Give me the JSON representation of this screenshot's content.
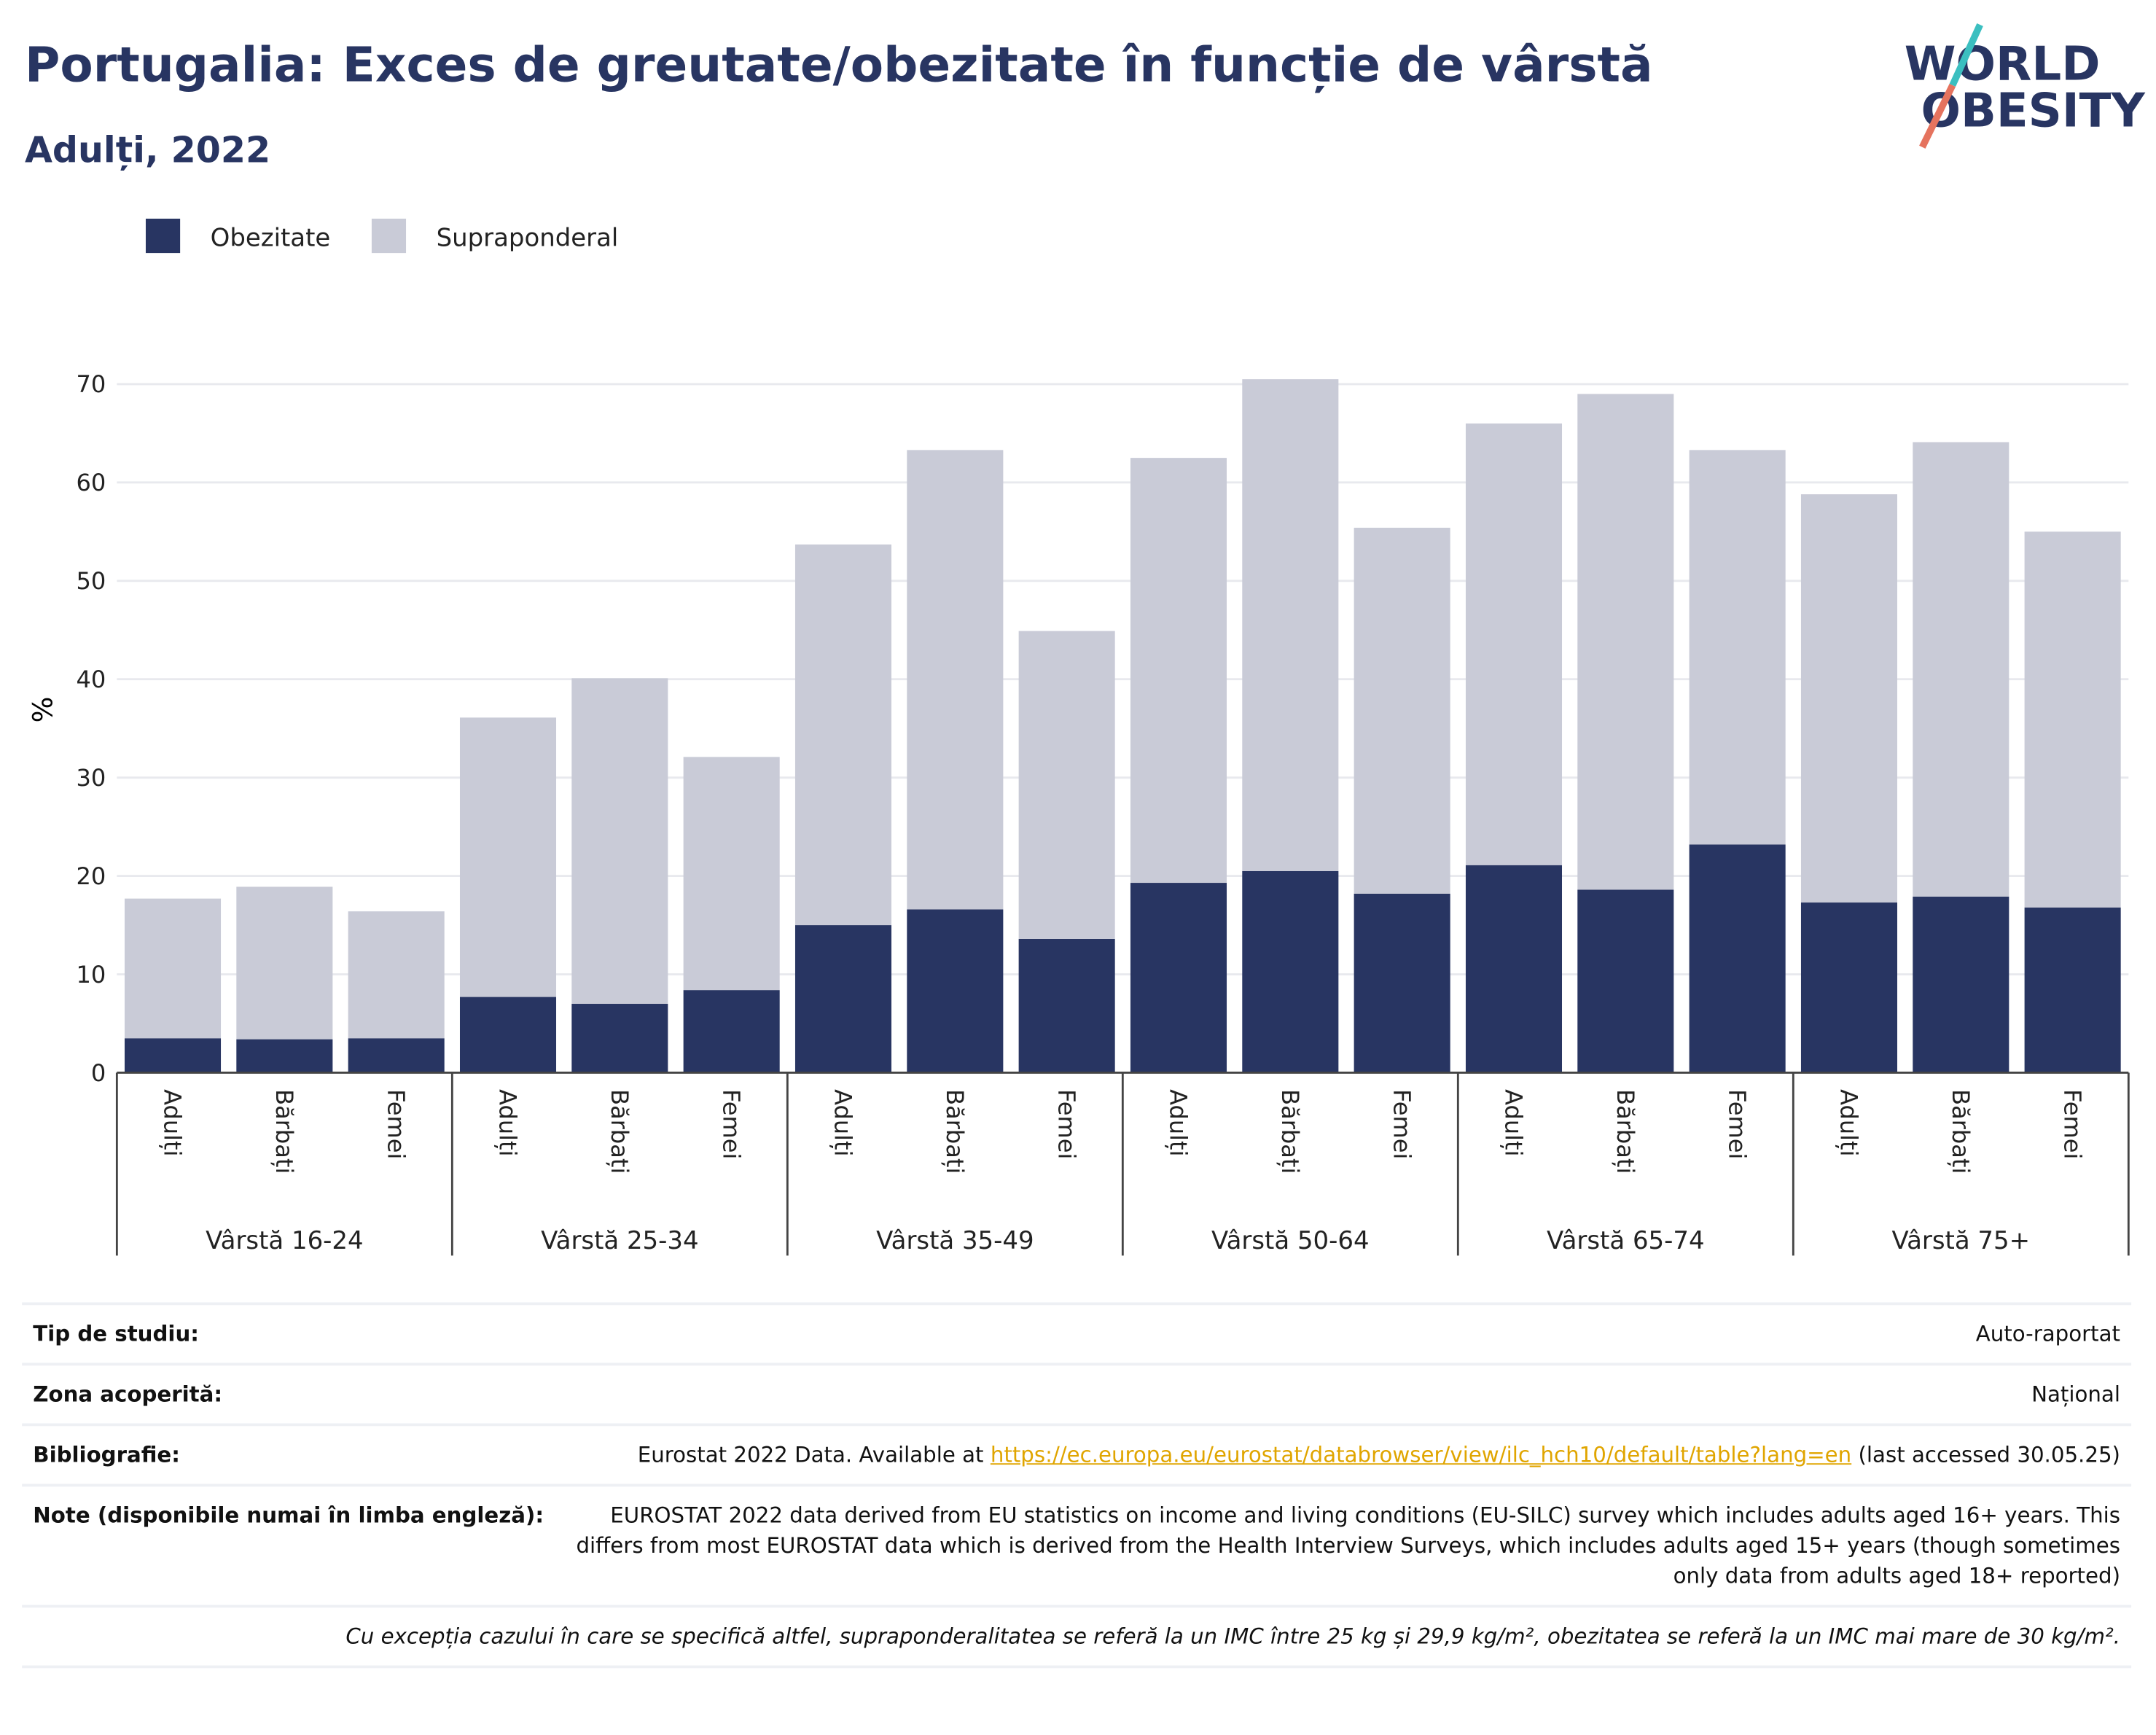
{
  "chart_data": {
    "type": "stacked_bar",
    "title": "Portugalia: Exces de greutate/obezitate în funcție de vârstă",
    "subtitle": "Adulți, 2022",
    "logo": [
      "WORLD",
      "OBESITY"
    ],
    "y_label": "%",
    "categories": [
      "Adulți",
      "Bărbați",
      "Femei",
      "Adulți",
      "Bărbați",
      "Femei",
      "Adulți",
      "Bărbați",
      "Femei",
      "Adulți",
      "Bărbați",
      "Femei",
      "Adulți",
      "Bărbați",
      "Femei",
      "Adulți",
      "Bărbați",
      "Femei"
    ],
    "groups": [
      "Vârstă 16-24",
      "Vârstă 25-34",
      "Vârstă 35-49",
      "Vârstă 50-64",
      "Vârstă 65-74",
      "Vârstă 75+"
    ],
    "series": [
      {
        "name": "Obezitate",
        "color": "#283562",
        "values": [
          3.5,
          3.4,
          3.5,
          7.7,
          7.0,
          8.4,
          15.0,
          16.6,
          13.6,
          19.3,
          20.5,
          18.2,
          21.1,
          18.6,
          23.2,
          17.3,
          17.9,
          16.8
        ]
      },
      {
        "name": "Supraponderal",
        "color": "#c9cbd7",
        "values": [
          14.2,
          15.5,
          12.9,
          28.4,
          33.1,
          23.7,
          38.7,
          46.7,
          31.3,
          43.2,
          50.0,
          37.2,
          44.9,
          50.4,
          40.1,
          41.5,
          46.2,
          38.2
        ]
      }
    ],
    "ylim": [
      0,
      72
    ],
    "yticks": [
      0,
      10,
      20,
      30,
      40,
      50,
      60,
      70
    ],
    "grid": true
  },
  "footer": {
    "rows": [
      {
        "label": "Tip de studiu:",
        "value": "Auto-raportat"
      },
      {
        "label": "Zona acoperită:",
        "value": "Național"
      }
    ],
    "bibliography": {
      "label": "Bibliografie:",
      "text": "Eurostat 2022 Data. Available at",
      "link": "https://ec.europa.eu/eurostat/databrowser/view/ilc_hch10/default/table?lang=en",
      "suffix": "(last accessed 30.05.25)"
    },
    "notes": {
      "label": "Note (disponibile numai în limba engleză):",
      "value": "EUROSTAT 2022 data derived from EU statistics on income and living conditions (EU-SILC) survey which includes adults aged 16+ years. This differs from most EUROSTAT data which is derived from the Health Interview Surveys, which includes adults aged 15+ years (though sometimes only data from adults aged 18+ reported)"
    },
    "footnote": "Cu excepția cazului în care se specifică altfel, supraponderalitatea se referă la un IMC între 25 kg și 29,9 kg/m², obezitatea se referă la un IMC mai mare de 30 kg/m²."
  }
}
